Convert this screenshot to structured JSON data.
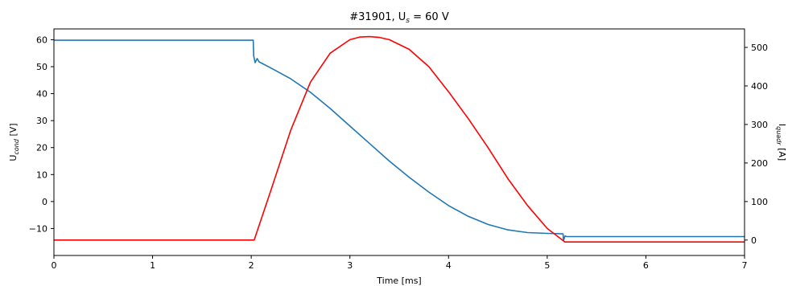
{
  "chart_data": {
    "type": "line",
    "title": {
      "main": "#31901, U",
      "sub": "s",
      "rest": " = 60 V"
    },
    "xlabel": "Time [ms]",
    "ylabel_left": {
      "main": "U",
      "sub": "cond",
      "rest": " [V]"
    },
    "ylabel_right": {
      "main": "I",
      "sub": "quadr",
      "rest": " [A]"
    },
    "xlim": [
      0,
      7
    ],
    "ylim_left": [
      -20,
      64
    ],
    "ylim_right": [
      -40,
      548
    ],
    "xticks": [
      0,
      1,
      2,
      3,
      4,
      5,
      6,
      7
    ],
    "yticks_left": [
      -10,
      0,
      10,
      20,
      30,
      40,
      50,
      60
    ],
    "yticks_right": [
      0,
      100,
      200,
      300,
      400,
      500
    ],
    "grid": false,
    "series": [
      {
        "color": "#1f77b4",
        "axis": "left",
        "x": [
          0,
          2.02,
          2.025,
          2.04,
          2.06,
          2.08,
          2.2,
          2.4,
          2.6,
          2.8,
          3.0,
          3.2,
          3.4,
          3.6,
          3.8,
          4.0,
          4.2,
          4.4,
          4.6,
          4.8,
          5.0,
          5.16,
          5.165,
          5.18,
          5.2,
          5.5,
          6.0,
          6.5,
          7.0
        ],
        "y": [
          59.8,
          59.8,
          54,
          51.5,
          53,
          51.8,
          49.5,
          45.5,
          40.5,
          34.5,
          28,
          21.5,
          15,
          9,
          3.5,
          -1.5,
          -5.5,
          -8.5,
          -10.5,
          -11.5,
          -11.8,
          -12,
          -14.5,
          -12.8,
          -13,
          -13,
          -13,
          -13,
          -13
        ]
      },
      {
        "color": "#ff0000",
        "axis": "right",
        "x": [
          0,
          2.03,
          2.2,
          2.4,
          2.6,
          2.8,
          3.0,
          3.1,
          3.2,
          3.3,
          3.4,
          3.6,
          3.8,
          4.0,
          4.2,
          4.4,
          4.6,
          4.8,
          5.0,
          5.18,
          5.2,
          5.5,
          6.0,
          6.5,
          7.0
        ],
        "y": [
          0,
          0,
          130,
          285,
          410,
          485,
          520,
          527,
          528,
          526,
          520,
          495,
          450,
          385,
          315,
          240,
          160,
          90,
          30,
          -5,
          -5,
          -5,
          -5,
          -5,
          -5
        ]
      }
    ]
  }
}
